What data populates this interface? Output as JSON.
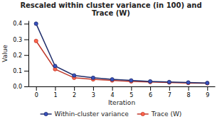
{
  "chart_data": {
    "type": "line",
    "title": "Rescaled within cluster variance (in 100) and\nTrace (W)",
    "x_label": "Iteration",
    "y_label": "Value",
    "x": [
      0,
      1,
      2,
      3,
      4,
      5,
      6,
      7,
      8,
      9
    ],
    "series": [
      {
        "name": "Within-cluster variance",
        "color": "#1f2d6b",
        "marker": "circle",
        "values": [
          0.4,
          0.13,
          0.07,
          0.055,
          0.045,
          0.038,
          0.032,
          0.028,
          0.025,
          0.022
        ]
      },
      {
        "name": "Trace (W)",
        "color": "#c0392b",
        "marker": "circle",
        "values": [
          0.29,
          0.11,
          0.055,
          0.045,
          0.038,
          0.032,
          0.028,
          0.025,
          0.022,
          0.02
        ]
      }
    ],
    "xlim": [
      -0.4,
      9.4
    ],
    "xticks": [
      0,
      1,
      2,
      3,
      4,
      5,
      6,
      7,
      8,
      9
    ],
    "ylim": [
      0,
      0.42
    ],
    "yticks": [
      {
        "value": 0,
        "label": "0.0"
      },
      0.1,
      0.2,
      0.3,
      0.4
    ],
    "grid": false,
    "legend": "bottom"
  }
}
